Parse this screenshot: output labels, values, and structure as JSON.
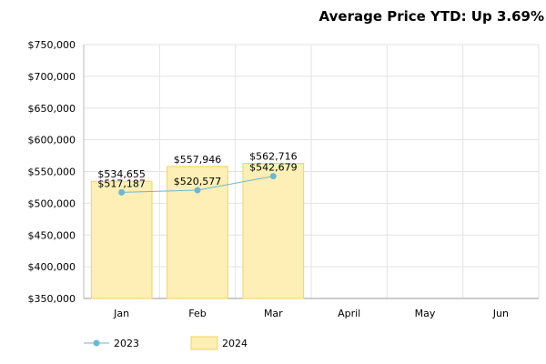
{
  "chart_data": {
    "type": "bar",
    "title": "Average Price YTD: Up 3.69%",
    "categories": [
      "Jan",
      "Feb",
      "Mar",
      "April",
      "May",
      "Jun"
    ],
    "ylim": [
      350000,
      750000
    ],
    "yticks": [
      "$350,000",
      "$400,000",
      "$450,000",
      "$500,000",
      "$550,000",
      "$600,000",
      "$650,000",
      "$700,000",
      "$750,000"
    ],
    "grid": true,
    "legend_position": "bottom-left",
    "series": [
      {
        "name": "2023",
        "kind": "line",
        "color": "#6fb6d1",
        "values": [
          517187,
          520577,
          542679,
          null,
          null,
          null
        ],
        "labels": [
          "$517,187",
          "$520,577",
          "$542,679",
          "",
          "",
          ""
        ]
      },
      {
        "name": "2024",
        "kind": "bar",
        "fill": "#fdefb5",
        "stroke": "#f2d35c",
        "values": [
          534655,
          557946,
          562716,
          null,
          null,
          null
        ],
        "labels": [
          "$534,655",
          "$557,946",
          "$562,716",
          "",
          "",
          ""
        ]
      }
    ]
  }
}
